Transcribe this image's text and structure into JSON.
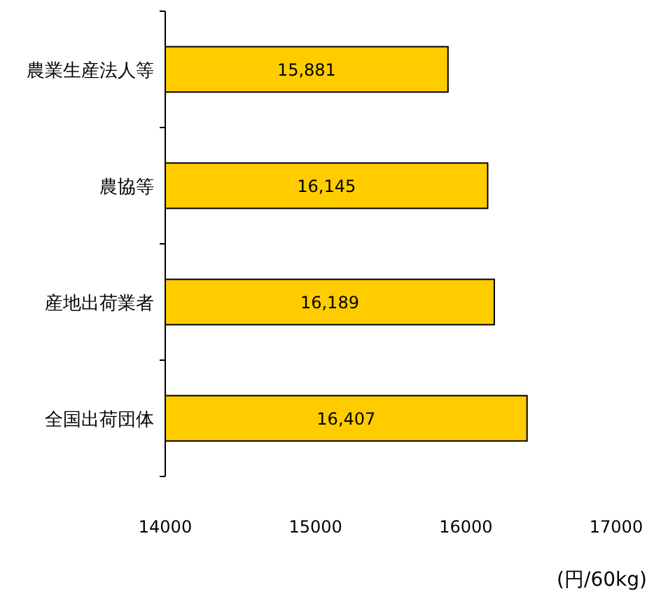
{
  "chart_data": {
    "type": "bar",
    "orientation": "horizontal",
    "categories": [
      "農業生産法人等",
      "農協等",
      "産地出荷業者",
      "全国出荷団体"
    ],
    "values": [
      15881,
      16145,
      16189,
      16407
    ],
    "color": "#ffcc00",
    "xlim": [
      14000,
      17000
    ],
    "xticks": [
      14000,
      15000,
      16000,
      17000
    ],
    "value_labels": [
      "15,881",
      "16,145",
      "16,189",
      "16,407"
    ],
    "xlabel": "(円/60kg)",
    "grid": false
  }
}
